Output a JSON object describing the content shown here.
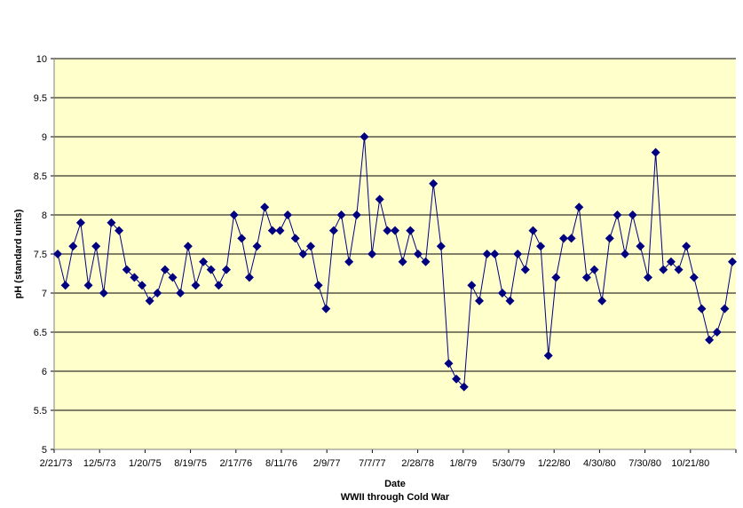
{
  "chart_data": {
    "type": "line",
    "title": "",
    "xlabel": "Date",
    "subtitle": "WWII through Cold War",
    "ylabel": "pH (standard units)",
    "ylim": [
      5,
      10
    ],
    "yticks": [
      "5",
      "5.5",
      "6",
      "6.5",
      "7",
      "7.5",
      "8",
      "8.5",
      "9",
      "9.5",
      "10"
    ],
    "xtick_labels": [
      "2/21/73",
      "12/5/73",
      "1/20/75",
      "8/19/75",
      "2/17/76",
      "8/11/76",
      "2/9/77",
      "7/7/77",
      "2/28/78",
      "1/8/79",
      "5/30/79",
      "1/22/80",
      "4/30/80",
      "7/30/80",
      "10/21/80"
    ],
    "grid": true,
    "legend": "none",
    "plot_background": "#FFFFCC",
    "series": [
      {
        "color": "#000080",
        "marker": "diamond",
        "values": [
          7.5,
          7.1,
          7.6,
          7.9,
          7.1,
          7.6,
          7.0,
          7.9,
          7.8,
          7.3,
          7.2,
          7.1,
          6.9,
          7.0,
          7.3,
          7.2,
          7.0,
          7.6,
          7.1,
          7.4,
          7.3,
          7.1,
          7.3,
          8.0,
          7.7,
          7.2,
          7.6,
          8.1,
          7.8,
          7.8,
          8.0,
          7.7,
          7.5,
          7.6,
          7.1,
          6.8,
          7.8,
          8.0,
          7.4,
          8.0,
          9.0,
          7.5,
          8.2,
          7.8,
          7.8,
          7.4,
          7.8,
          7.5,
          7.4,
          8.4,
          7.6,
          6.1,
          5.9,
          5.8,
          7.1,
          6.9,
          7.5,
          7.5,
          7.0,
          6.9,
          7.5,
          7.3,
          7.8,
          7.6,
          6.2,
          7.2,
          7.7,
          7.7,
          8.1,
          7.2,
          7.3,
          6.9,
          7.7,
          8.0,
          7.5,
          8.0,
          7.6,
          7.2,
          8.8,
          7.3,
          7.4,
          7.3,
          7.6,
          7.2,
          6.8,
          6.4,
          6.5,
          6.8,
          7.4
        ]
      }
    ]
  }
}
